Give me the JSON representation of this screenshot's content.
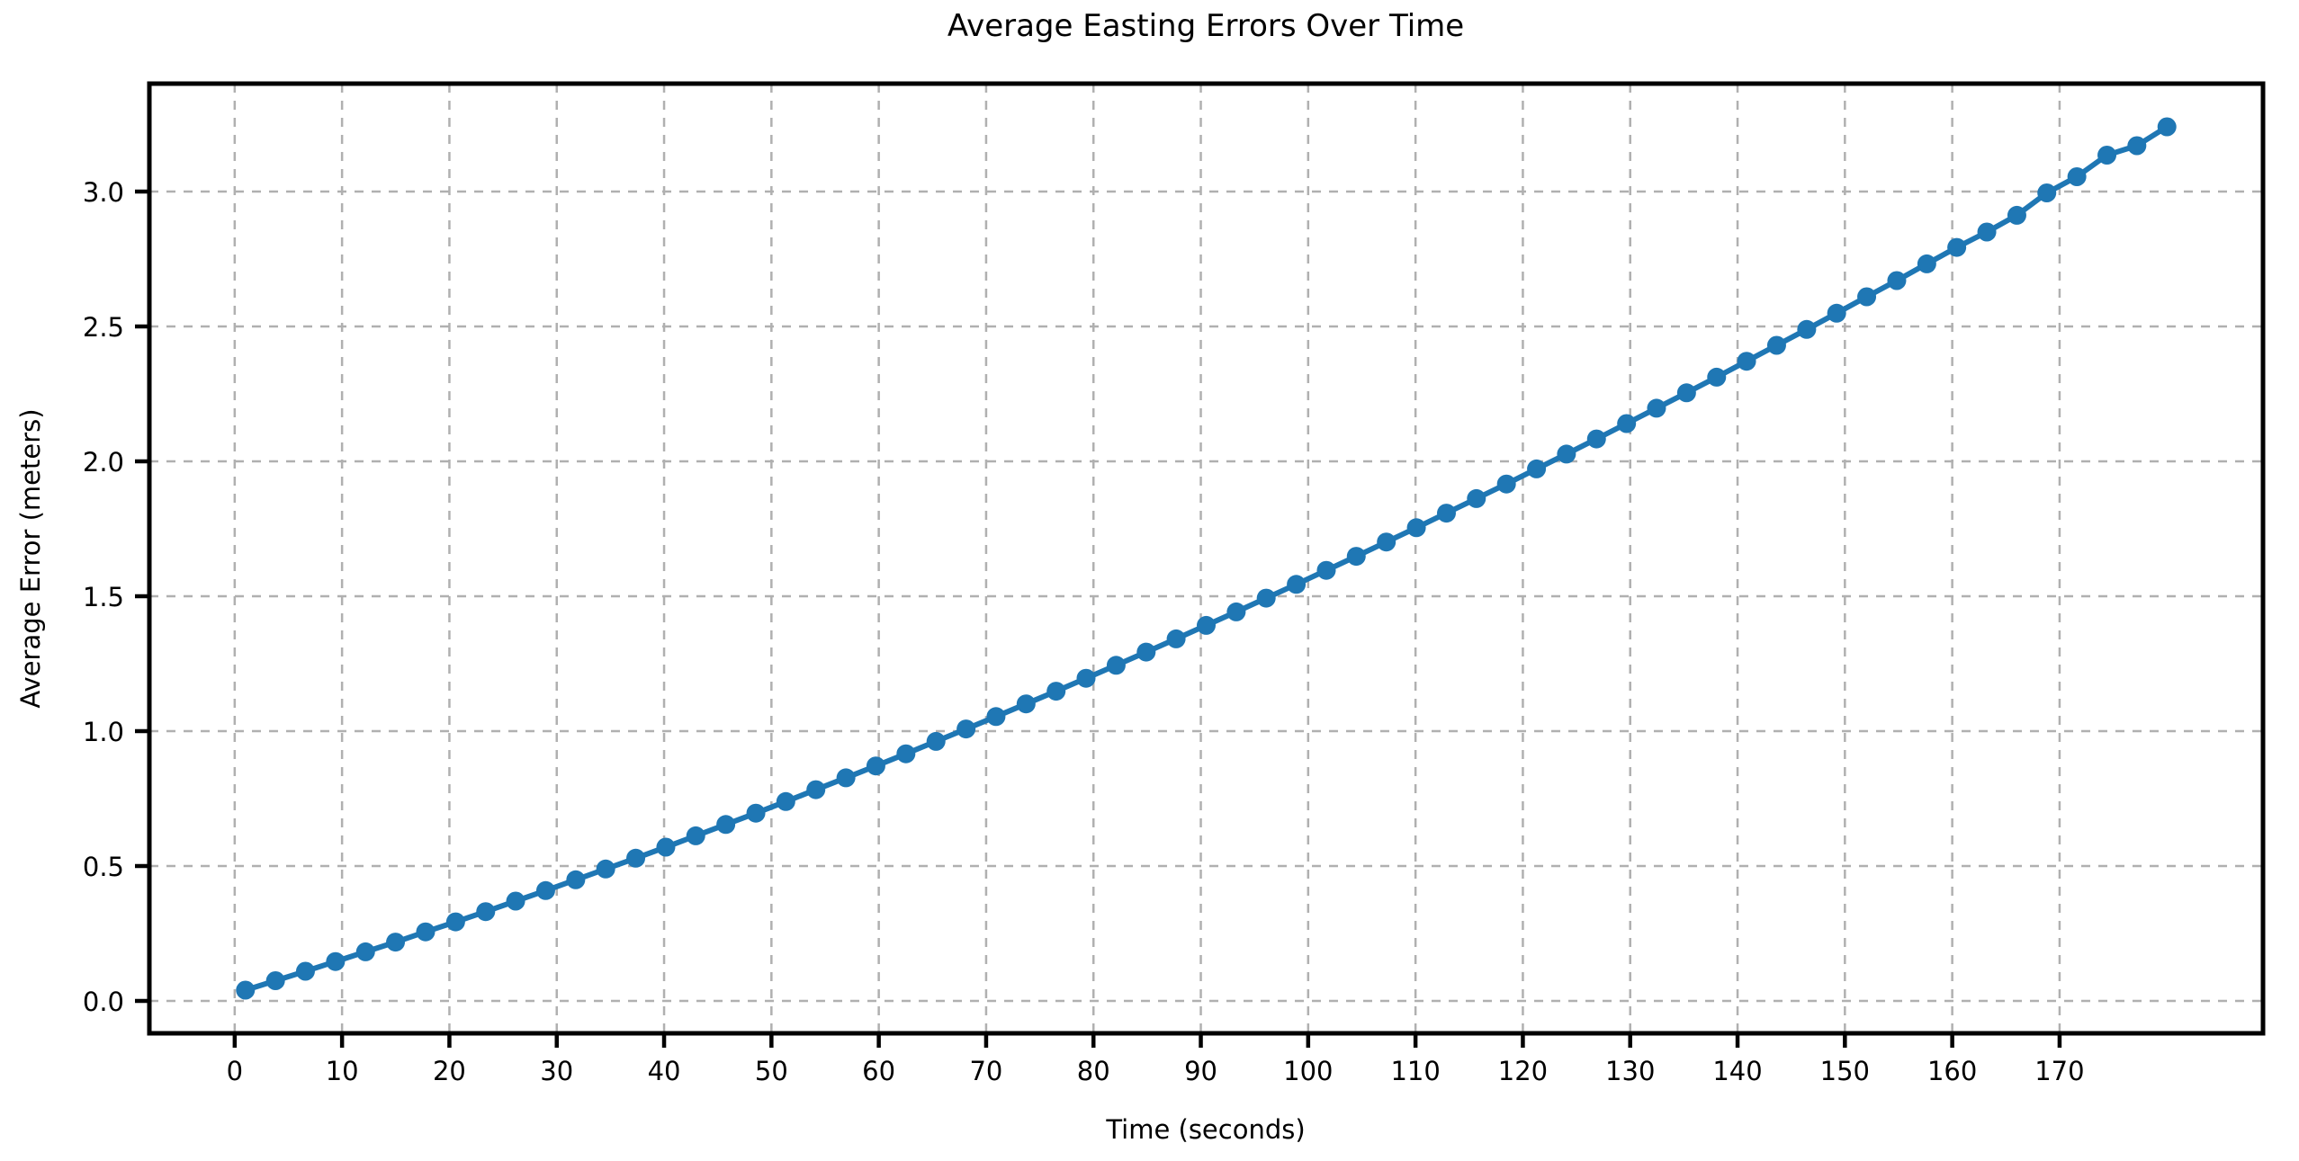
{
  "chart_data": {
    "type": "line",
    "title": "Average Easting Errors Over Time",
    "xlabel": "Time (seconds)",
    "ylabel": "Average Error (meters)",
    "xlim": [
      -7.95,
      188.95
    ],
    "ylim": [
      -0.12,
      3.4
    ],
    "xticks": [
      0,
      10,
      20,
      30,
      40,
      50,
      60,
      70,
      80,
      90,
      100,
      110,
      120,
      130,
      140,
      150,
      160,
      170
    ],
    "xtick_labels": [
      "0",
      "10",
      "20",
      "30",
      "40",
      "50",
      "60",
      "70",
      "80",
      "90",
      "100",
      "110",
      "120",
      "130",
      "140",
      "150",
      "160",
      "170"
    ],
    "yticks": [
      0.0,
      0.5,
      1.0,
      1.5,
      2.0,
      2.5,
      3.0
    ],
    "ytick_labels": [
      "0.0",
      "0.5",
      "1.0",
      "1.5",
      "2.0",
      "2.5",
      "3.0"
    ],
    "grid": true,
    "grid_style": "dashed",
    "legend_position": "none",
    "marker": "circle",
    "line_color": "#1f77b4",
    "marker_color": "#1f77b4",
    "grid_color": "#b0b0b0",
    "axis_color": "#000000",
    "background_color": "#ffffff",
    "series": [
      {
        "name": "Average Easting Error",
        "x": [
          1.0,
          3.8,
          6.59,
          9.39,
          12.19,
          14.98,
          17.78,
          20.58,
          23.38,
          26.17,
          28.97,
          31.77,
          34.56,
          37.36,
          40.16,
          42.95,
          45.75,
          48.55,
          51.34,
          54.14,
          56.94,
          59.73,
          62.53,
          65.33,
          68.13,
          70.92,
          73.72,
          76.52,
          79.31,
          82.11,
          84.91,
          87.7,
          90.5,
          93.3,
          96.09,
          98.89,
          101.69,
          104.48,
          107.28,
          110.08,
          112.88,
          115.67,
          118.47,
          121.27,
          124.06,
          126.86,
          129.66,
          132.45,
          135.25,
          138.05,
          140.84,
          143.64,
          146.44,
          149.23,
          152.03,
          154.83,
          157.63,
          160.42,
          163.22,
          166.02,
          168.81,
          171.61,
          174.41,
          177.2,
          180.0
        ],
        "y": [
          0.04,
          0.075,
          0.11,
          0.146,
          0.182,
          0.218,
          0.256,
          0.293,
          0.331,
          0.37,
          0.409,
          0.449,
          0.489,
          0.529,
          0.57,
          0.612,
          0.654,
          0.696,
          0.739,
          0.783,
          0.827,
          0.871,
          0.916,
          0.962,
          1.008,
          1.054,
          1.101,
          1.148,
          1.196,
          1.244,
          1.293,
          1.342,
          1.392,
          1.442,
          1.493,
          1.544,
          1.596,
          1.648,
          1.701,
          1.754,
          1.808,
          1.862,
          1.916,
          1.972,
          2.027,
          2.083,
          2.14,
          2.197,
          2.254,
          2.312,
          2.371,
          2.43,
          2.489,
          2.549,
          2.61,
          2.67,
          2.732,
          2.793,
          2.85,
          2.912,
          2.995,
          3.055,
          3.135,
          3.17,
          3.24
        ]
      }
    ]
  }
}
